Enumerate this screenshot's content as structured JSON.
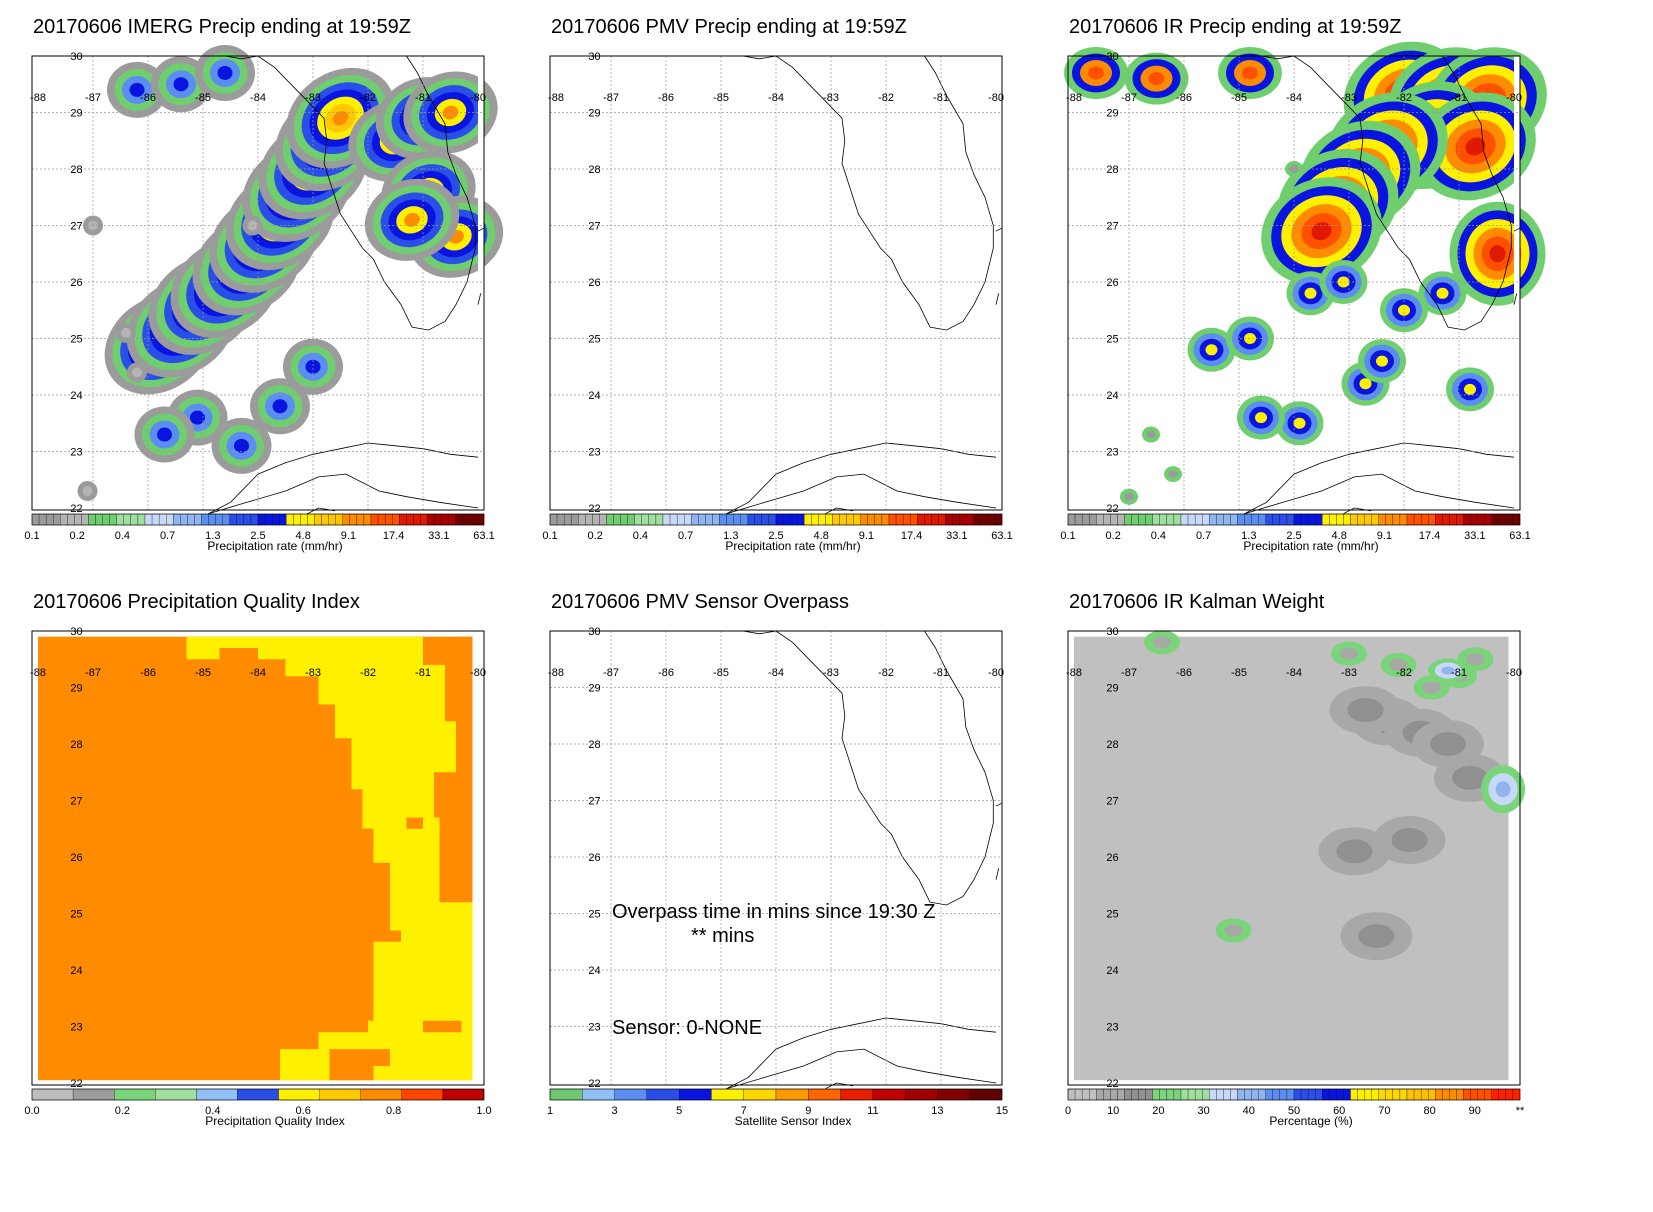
{
  "panels": [
    {
      "id": "imerg",
      "title": "20170606 IMERG Precip ending at 19:59Z",
      "kind": "precip",
      "colorbar": {
        "label": "Precipitation rate (mm/hr)",
        "ticks": [
          "0.1",
          "0.2",
          "0.4",
          "0.7",
          "1.3",
          "2.5",
          "4.8",
          "9.1",
          "17.4",
          "33.1",
          "63.1"
        ]
      }
    },
    {
      "id": "pmv",
      "title": "20170606 PMV Precip ending at 19:59Z",
      "kind": "empty",
      "colorbar": {
        "label": "Precipitation rate (mm/hr)",
        "ticks": [
          "0.1",
          "0.2",
          "0.4",
          "0.7",
          "1.3",
          "2.5",
          "4.8",
          "9.1",
          "17.4",
          "33.1",
          "63.1"
        ]
      }
    },
    {
      "id": "ir",
      "title": "20170606 IR Precip ending at 19:59Z",
      "kind": "precip-ir",
      "colorbar": {
        "label": "Precipitation rate (mm/hr)",
        "ticks": [
          "0.1",
          "0.2",
          "0.4",
          "0.7",
          "1.3",
          "2.5",
          "4.8",
          "9.1",
          "17.4",
          "33.1",
          "63.1"
        ]
      }
    },
    {
      "id": "pqi",
      "title": "20170606 Precipitation Quality Index",
      "kind": "quality",
      "colorbar": {
        "label": "Precipitation Quality Index",
        "ticks": [
          "0.0",
          "0.2",
          "0.4",
          "0.6",
          "0.8",
          "1.0"
        ]
      }
    },
    {
      "id": "overpass",
      "title": "20170606 PMV Sensor Overpass",
      "kind": "overpass",
      "overpass_text": "Overpass time in mins since 19:30 Z",
      "overpass_value": "** mins",
      "sensor_text": "Sensor:   0-NONE",
      "colorbar": {
        "label": "Satellite Sensor Index",
        "ticks": [
          "1",
          "3",
          "5",
          "7",
          "9",
          "11",
          "13",
          "15"
        ]
      }
    },
    {
      "id": "kalman",
      "title": "20170606 IR Kalman Weight",
      "kind": "kalman",
      "colorbar": {
        "label": "Percentage (%)",
        "ticks": [
          "0",
          "10",
          "20",
          "30",
          "40",
          "50",
          "60",
          "70",
          "80",
          "90",
          "**"
        ]
      }
    }
  ],
  "map": {
    "lon_labels": [
      "-88",
      "-87",
      "-86",
      "-85",
      "-84",
      "-83",
      "-82",
      "-81",
      "-80"
    ],
    "lat_labels": [
      "30",
      "29",
      "28",
      "27",
      "26",
      "25",
      "24",
      "23",
      "22"
    ],
    "lon_min": -88,
    "lon_max": -80,
    "lat_min": 22,
    "lat_max": 30
  },
  "colors": {
    "precip_scale": [
      "#9b9b9b",
      "#b4b4b4",
      "#6fcf6f",
      "#9fe09f",
      "#c8d8f8",
      "#8fb4f0",
      "#5a8ef0",
      "#2a4ee8",
      "#0a14e0",
      "#fff000",
      "#ffc800",
      "#ff8c00",
      "#ff5000",
      "#e01a00",
      "#a80000",
      "#700000"
    ],
    "quality_scale": [
      "#bdbdbd",
      "#9b9b9b",
      "#7ad47a",
      "#9fe09f",
      "#8fc0f8",
      "#2a4ee8",
      "#fff000",
      "#ffc800",
      "#ff8c00",
      "#ff4400",
      "#c00000",
      "#701010"
    ],
    "sensor_scale": [
      "#6fc86f",
      "#8fc0f8",
      "#5a8ef0",
      "#2a4ee8",
      "#0a14e0",
      "#fff000",
      "#ffd700",
      "#ff9900",
      "#ff6600",
      "#e81e00",
      "#c00000",
      "#a00000",
      "#800000",
      "#600000"
    ],
    "kalman_scale": [
      "#c0c0c0",
      "#a8a8a8",
      "#909090",
      "#7ad47a",
      "#9fe09f",
      "#c8d8f8",
      "#8fb4f0",
      "#5a8ef0",
      "#2a4ee8",
      "#0a14e0",
      "#fff000",
      "#ffd700",
      "#ffc000",
      "#ff8c00",
      "#ff5000",
      "#ff2000"
    ]
  }
}
